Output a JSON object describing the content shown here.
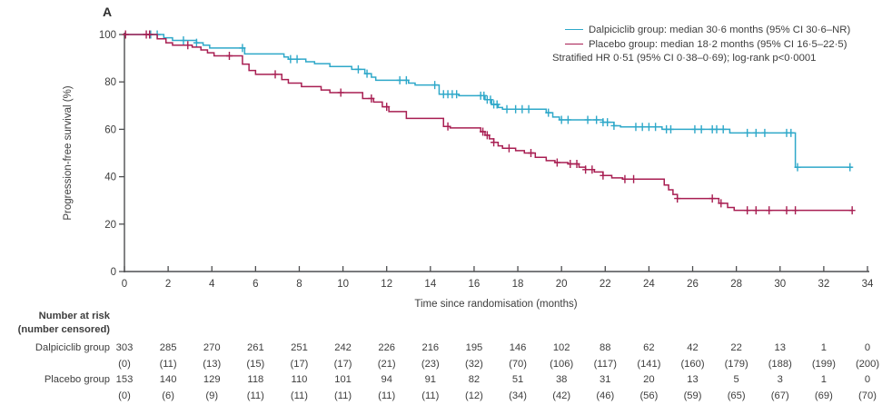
{
  "panel_label": "A",
  "colors": {
    "dalpiciclib": "#2ea8c9",
    "placebo": "#a81e52",
    "axis": "#4d4e50",
    "text": "#3d3d3d"
  },
  "legend": {
    "entries": [
      {
        "label": "Dalpiciclib group: median 30·6 months (95% CI 30·6–NR)",
        "color_key": "dalpiciclib"
      },
      {
        "label": "Placebo group: median 18·2 months (95% CI 16·5–22·5)",
        "color_key": "placebo"
      }
    ],
    "note": "Stratified HR 0·51 (95% CI 0·38–0·69); log-rank p<0·0001"
  },
  "chart_data": {
    "type": "line",
    "subtype": "kaplan-meier-step",
    "title": "",
    "xlabel": "Time since randomisation (months)",
    "ylabel": "Progression-free survival (%)",
    "xlim": [
      0,
      34
    ],
    "ylim": [
      0,
      100
    ],
    "xticks": [
      0,
      2,
      4,
      6,
      8,
      10,
      12,
      14,
      16,
      18,
      20,
      22,
      24,
      26,
      28,
      30,
      32,
      34
    ],
    "yticks": [
      0,
      20,
      40,
      60,
      80,
      100
    ],
    "grid": false,
    "legend_position": "top-right",
    "series": [
      {
        "name": "Dalpiciclib group",
        "color_key": "dalpiciclib",
        "steps": [
          [
            0,
            100
          ],
          [
            1.8,
            98.6
          ],
          [
            2.2,
            97.5
          ],
          [
            3.3,
            96.5
          ],
          [
            3.6,
            95.5
          ],
          [
            3.9,
            94.3
          ],
          [
            5.5,
            91.8
          ],
          [
            7.3,
            90.5
          ],
          [
            7.5,
            89.6
          ],
          [
            8.3,
            88.5
          ],
          [
            8.7,
            87.7
          ],
          [
            9.4,
            86.5
          ],
          [
            10.4,
            85.3
          ],
          [
            11.0,
            83.5
          ],
          [
            11.3,
            82
          ],
          [
            11.5,
            80.7
          ],
          [
            13.0,
            79.5
          ],
          [
            13.3,
            78.7
          ],
          [
            14.4,
            74.8
          ],
          [
            15.3,
            74.2
          ],
          [
            16.5,
            72.5
          ],
          [
            16.8,
            70.5
          ],
          [
            17.1,
            69.2
          ],
          [
            17.3,
            68.5
          ],
          [
            19.3,
            67
          ],
          [
            19.6,
            65.2
          ],
          [
            19.9,
            64
          ],
          [
            21.9,
            63
          ],
          [
            22.4,
            61.5
          ],
          [
            22.7,
            61
          ],
          [
            24.6,
            60
          ],
          [
            27.7,
            58.5
          ],
          [
            30.7,
            44
          ],
          [
            33.3,
            44
          ]
        ],
        "censor_times": [
          1.2,
          1.5,
          2.7,
          3.3,
          5.4,
          7.6,
          7.9,
          10.7,
          11.1,
          12.6,
          12.9,
          14.2,
          14.6,
          14.8,
          15.0,
          15.2,
          16.3,
          16.45,
          16.6,
          16.75,
          16.9,
          17.05,
          17.5,
          17.9,
          18.2,
          18.5,
          19.4,
          20.0,
          20.3,
          21.2,
          21.6,
          21.9,
          22.1,
          22.4,
          23.4,
          23.7,
          24.0,
          24.3,
          24.8,
          25.0,
          26.1,
          26.4,
          26.9,
          27.1,
          27.4,
          28.5,
          28.9,
          29.3,
          30.3,
          30.5,
          30.8,
          33.2
        ]
      },
      {
        "name": "Placebo group",
        "color_key": "placebo",
        "steps": [
          [
            0,
            100
          ],
          [
            1.5,
            98.2
          ],
          [
            1.9,
            96.5
          ],
          [
            2.2,
            95.5
          ],
          [
            3.1,
            94.7
          ],
          [
            3.5,
            93.5
          ],
          [
            3.8,
            92.3
          ],
          [
            4.1,
            91
          ],
          [
            5.4,
            87.5
          ],
          [
            5.7,
            84.8
          ],
          [
            6.0,
            83.2
          ],
          [
            7.2,
            81
          ],
          [
            7.5,
            79.5
          ],
          [
            8.1,
            78
          ],
          [
            9.0,
            76.6
          ],
          [
            9.4,
            75.5
          ],
          [
            10.9,
            73
          ],
          [
            11.4,
            71.5
          ],
          [
            11.8,
            69.5
          ],
          [
            12.1,
            67.5
          ],
          [
            12.9,
            64.6
          ],
          [
            14.6,
            61.2
          ],
          [
            14.9,
            60.6
          ],
          [
            16.3,
            59
          ],
          [
            16.5,
            57.5
          ],
          [
            16.7,
            56
          ],
          [
            16.9,
            54.5
          ],
          [
            17.1,
            53
          ],
          [
            17.3,
            52
          ],
          [
            17.9,
            51
          ],
          [
            18.3,
            50
          ],
          [
            18.8,
            48.2
          ],
          [
            19.3,
            46.8
          ],
          [
            19.7,
            46
          ],
          [
            20.3,
            45.4
          ],
          [
            20.8,
            44
          ],
          [
            21.1,
            43
          ],
          [
            21.5,
            42
          ],
          [
            21.9,
            40.5
          ],
          [
            22.3,
            39.5
          ],
          [
            22.8,
            39
          ],
          [
            24.7,
            36.5
          ],
          [
            24.9,
            34.5
          ],
          [
            25.1,
            32.5
          ],
          [
            25.3,
            30.8
          ],
          [
            27.2,
            28.8
          ],
          [
            27.6,
            27
          ],
          [
            27.9,
            25.8
          ],
          [
            33.3,
            25.8
          ]
        ],
        "censor_times": [
          0.05,
          1.0,
          1.15,
          2.9,
          4.8,
          6.9,
          9.9,
          11.3,
          12.0,
          14.8,
          16.4,
          16.6,
          16.9,
          17.6,
          18.6,
          19.8,
          20.4,
          20.7,
          21.1,
          21.4,
          21.9,
          22.9,
          23.3,
          25.3,
          26.9,
          27.3,
          28.5,
          28.9,
          29.5,
          30.3,
          30.7,
          33.3
        ]
      }
    ]
  },
  "risk_table": {
    "header_line1": "Number at risk",
    "header_line2": "(number censored)",
    "timepoints": [
      0,
      2,
      4,
      6,
      8,
      10,
      12,
      14,
      16,
      18,
      20,
      22,
      24,
      26,
      28,
      30,
      32,
      34
    ],
    "rows": [
      {
        "label": "Dalpiciclib group",
        "at_risk": [
          303,
          285,
          270,
          261,
          251,
          242,
          226,
          216,
          195,
          146,
          102,
          88,
          62,
          42,
          22,
          13,
          1,
          0
        ],
        "censored": [
          0,
          11,
          13,
          15,
          17,
          17,
          21,
          23,
          32,
          70,
          106,
          117,
          141,
          160,
          179,
          188,
          199,
          200
        ]
      },
      {
        "label": "Placebo group",
        "at_risk": [
          153,
          140,
          129,
          118,
          110,
          101,
          94,
          91,
          82,
          51,
          38,
          31,
          20,
          13,
          5,
          3,
          1,
          0
        ],
        "censored": [
          0,
          6,
          9,
          11,
          11,
          11,
          11,
          11,
          12,
          34,
          42,
          46,
          56,
          59,
          65,
          67,
          69,
          70
        ]
      }
    ]
  }
}
